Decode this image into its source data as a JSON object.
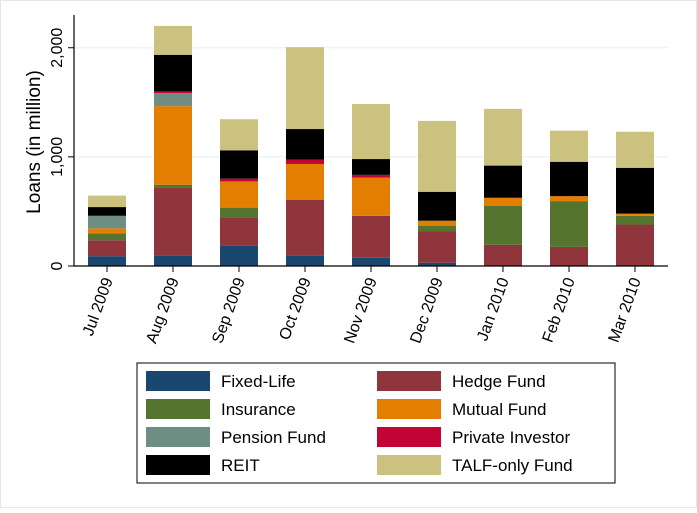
{
  "chart_data": {
    "type": "bar",
    "stacked": true,
    "title": "",
    "xlabel": "",
    "ylabel": "Loans (in million)",
    "ylim": [
      0,
      2300
    ],
    "yticks": [
      0,
      1000,
      2000
    ],
    "ytick_labels": [
      "0",
      "1,000",
      "2,000"
    ],
    "grid": true,
    "legend_position": "bottom",
    "categories": [
      "Jul 2009",
      "Aug 2009",
      "Sep 2009",
      "Oct 2009",
      "Nov 2009",
      "Dec 2009",
      "Jan 2010",
      "Feb 2010",
      "Mar 2010"
    ],
    "series": [
      {
        "name": "Fixed-Life",
        "color": "#1a476f",
        "values": [
          90,
          95,
          190,
          95,
          75,
          30,
          0,
          0,
          0
        ]
      },
      {
        "name": "Hedge Fund",
        "color": "#90353b",
        "values": [
          145,
          620,
          250,
          510,
          385,
          290,
          195,
          175,
          380
        ]
      },
      {
        "name": "Insurance",
        "color": "#55752f",
        "values": [
          65,
          30,
          95,
          0,
          0,
          50,
          355,
          420,
          80
        ]
      },
      {
        "name": "Mutual Fund",
        "color": "#e37e00",
        "values": [
          45,
          720,
          240,
          330,
          350,
          45,
          75,
          45,
          20
        ]
      },
      {
        "name": "Pension Fund",
        "color": "#6e8e84",
        "values": [
          115,
          120,
          0,
          0,
          0,
          0,
          0,
          0,
          0
        ]
      },
      {
        "name": "Private Investor",
        "color": "#c10534",
        "values": [
          0,
          15,
          25,
          40,
          25,
          0,
          0,
          0,
          0
        ]
      },
      {
        "name": "REIT",
        "color": "#000000",
        "values": [
          80,
          335,
          260,
          280,
          145,
          265,
          295,
          315,
          420
        ]
      },
      {
        "name": "TALF-only Fund",
        "color": "#cac27e",
        "values": [
          105,
          265,
          285,
          750,
          505,
          650,
          520,
          285,
          330
        ]
      }
    ],
    "legend_order": [
      "Fixed-Life",
      "Hedge Fund",
      "Insurance",
      "Mutual Fund",
      "Pension Fund",
      "Private Investor",
      "REIT",
      "TALF-only Fund"
    ]
  }
}
